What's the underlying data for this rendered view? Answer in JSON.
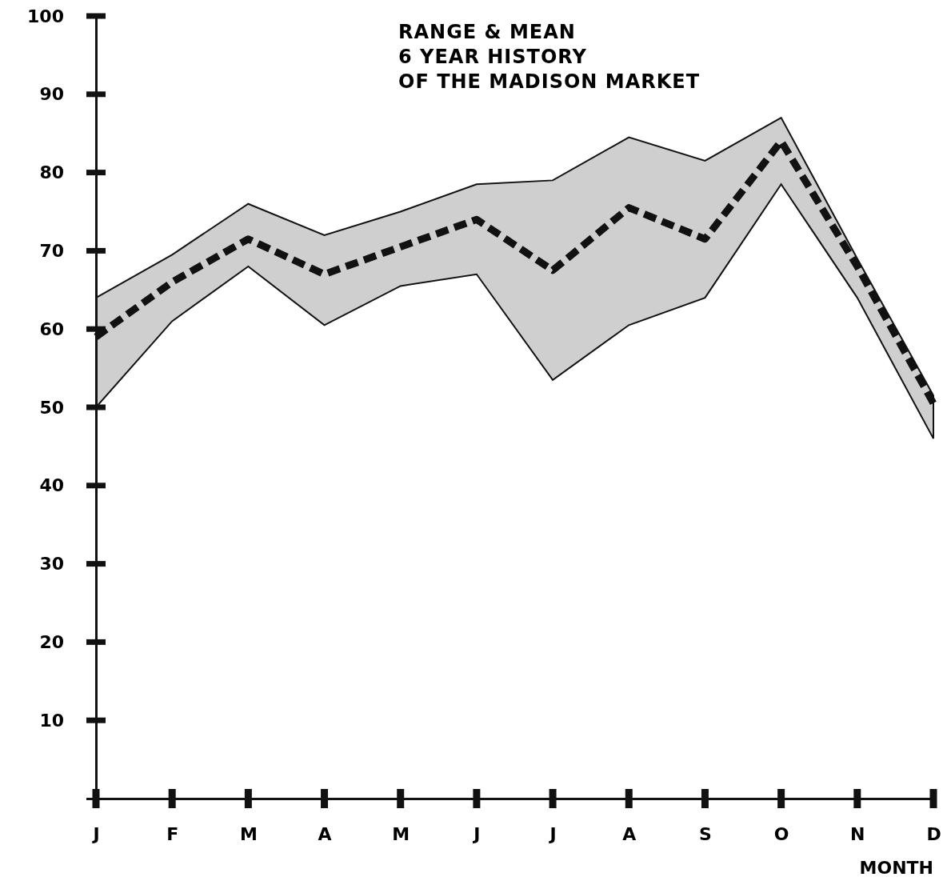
{
  "chart_data": {
    "type": "line",
    "title": "RANGE & MEAN\n6 YEAR HISTORY\nOF THE MADISON MARKET",
    "xlabel": "MONTH",
    "categories": [
      "J",
      "F",
      "M",
      "A",
      "M",
      "J",
      "J",
      "A",
      "S",
      "O",
      "N",
      "D"
    ],
    "series": [
      {
        "color": "#111111",
        "values": [
          59,
          66,
          71.5,
          67,
          70.5,
          74,
          67.5,
          75.5,
          71.5,
          84,
          68,
          50.5
        ],
        "lower": [
          50,
          61,
          68,
          60.5,
          65.5,
          67,
          53.5,
          60.5,
          64,
          78.5,
          64,
          46
        ],
        "upper": [
          64,
          69.5,
          76,
          72,
          75,
          78.5,
          79,
          84.5,
          81.5,
          87,
          69,
          51.5
        ]
      }
    ],
    "ylim": [
      0,
      100
    ],
    "yticks": [
      10,
      20,
      30,
      40,
      50,
      60,
      70,
      80,
      90,
      100
    ],
    "grid": false,
    "line_style": "dashed",
    "marker": "none"
  }
}
